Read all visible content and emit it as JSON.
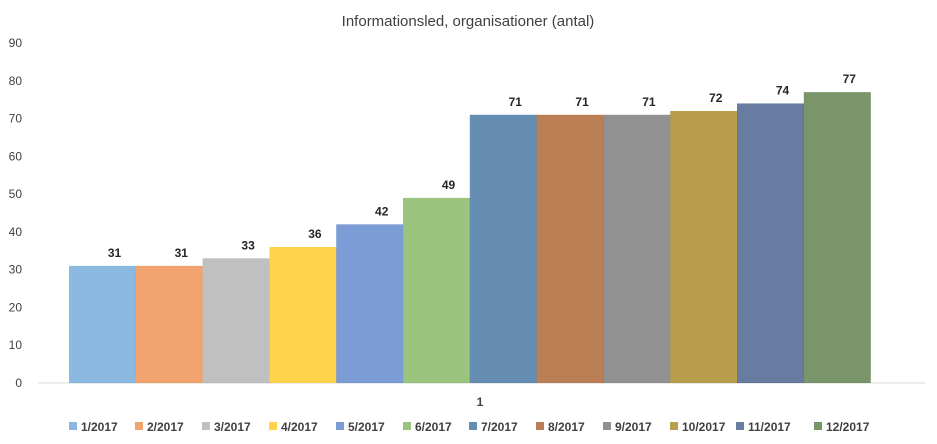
{
  "chart_data": {
    "type": "bar",
    "title": "Informationsled, organisationer (antal)",
    "categories": [
      "1"
    ],
    "ylim": [
      0,
      90
    ],
    "yticks": [
      0,
      10,
      20,
      30,
      40,
      50,
      60,
      70,
      80,
      90
    ],
    "grid": false,
    "legend_position": "bottom",
    "series": [
      {
        "name": "1/2017",
        "values": [
          31
        ],
        "color": "#5b9bd5"
      },
      {
        "name": "2/2017",
        "values": [
          31
        ],
        "color": "#ed7d31"
      },
      {
        "name": "3/2017",
        "values": [
          33
        ],
        "color": "#a5a5a5"
      },
      {
        "name": "4/2017",
        "values": [
          36
        ],
        "color": "#ffc000"
      },
      {
        "name": "5/2017",
        "values": [
          42
        ],
        "color": "#4472c4"
      },
      {
        "name": "6/2017",
        "values": [
          49
        ],
        "color": "#70ad47"
      },
      {
        "name": "7/2017",
        "values": [
          71
        ],
        "color": "#255e91"
      },
      {
        "name": "8/2017",
        "values": [
          71
        ],
        "color": "#9e480e"
      },
      {
        "name": "9/2017",
        "values": [
          71
        ],
        "color": "#636363"
      },
      {
        "name": "10/2017",
        "values": [
          72
        ],
        "color": "#997300"
      },
      {
        "name": "11/2017",
        "values": [
          74
        ],
        "color": "#264478"
      },
      {
        "name": "12/2017",
        "values": [
          77
        ],
        "color": "#43682b"
      }
    ]
  }
}
